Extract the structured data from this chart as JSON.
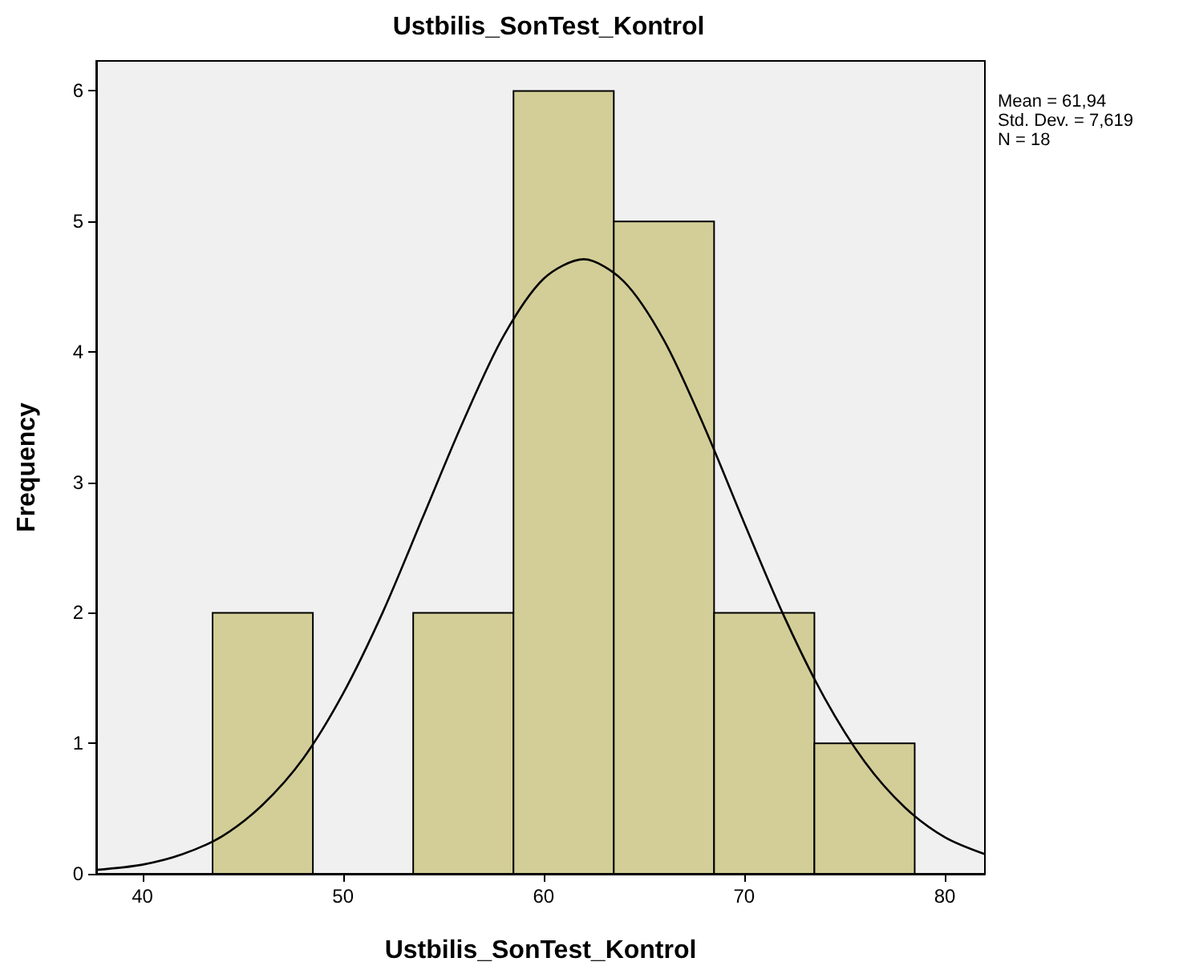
{
  "chart_data": {
    "type": "histogram",
    "title": "Ustbilis_SonTest_Kontrol",
    "xlabel": "Ustbilis_SonTest_Kontrol",
    "ylabel": "Frequency",
    "bins": [
      43.5,
      48.5,
      53.5,
      58.5,
      63.5,
      68.5,
      73.5,
      78.5
    ],
    "values": [
      2,
      0,
      2,
      6,
      5,
      2,
      1
    ],
    "color": "#d3ce97",
    "series": [
      {
        "type": "line",
        "color": "#000000",
        "x": [
          37.7,
          40,
          42,
          44,
          46,
          48,
          50,
          52,
          54,
          56,
          58,
          60,
          62,
          64,
          66,
          68,
          70,
          72,
          74,
          76,
          78,
          80,
          82
        ],
        "values": [
          0.03,
          0.07,
          0.15,
          0.29,
          0.53,
          0.88,
          1.38,
          2.01,
          2.74,
          3.47,
          4.12,
          4.56,
          4.71,
          4.54,
          4.09,
          3.43,
          2.69,
          1.97,
          1.35,
          0.86,
          0.51,
          0.28,
          0.15
        ]
      }
    ],
    "marker": "none",
    "xlim": [
      37.7,
      82
    ],
    "xticks": [
      40,
      50,
      60,
      70,
      80
    ],
    "ylim": [
      0,
      6.23
    ],
    "yticks": [
      0,
      1,
      2,
      3,
      4,
      5,
      6
    ],
    "grid": false,
    "annotations": [
      "Mean = 61,94",
      "Std. Dev. = 7,619",
      "N = 18"
    ]
  }
}
